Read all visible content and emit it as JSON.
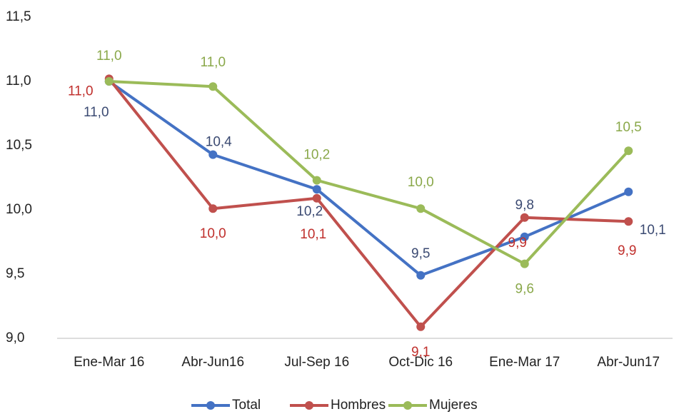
{
  "chart_data": {
    "type": "line",
    "categories": [
      "Ene-Mar 16",
      "Abr-Jun16",
      "Jul-Sep 16",
      "Oct-Dic 16",
      "Ene-Mar 17",
      "Abr-Jun17"
    ],
    "ylim": [
      9,
      11.5
    ],
    "yticks": [
      {
        "value": 9,
        "label": "9,0"
      },
      {
        "value": 9.5,
        "label": "9,5"
      },
      {
        "value": 10,
        "label": "10,0"
      },
      {
        "value": 10.5,
        "label": "10,5"
      },
      {
        "value": 11,
        "label": "11,0"
      },
      {
        "value": 11.5,
        "label": "11,5"
      }
    ],
    "grid": false,
    "legend": "bottom",
    "series": [
      {
        "name": "Total",
        "color": "#4472c4",
        "label_color": "#3b4a72",
        "values": [
          11.0,
          10.43,
          10.16,
          9.49,
          9.79,
          10.14
        ],
        "value_labels": [
          "11,0",
          "10,4",
          "10,2",
          "9,5",
          "9,8",
          "10,1"
        ]
      },
      {
        "name": "Hombres",
        "color": "#c0504d",
        "label_color": "#c0302d",
        "values": [
          11.02,
          10.01,
          10.09,
          9.09,
          9.94,
          9.91
        ],
        "value_labels": [
          "11,0",
          "10,0",
          "10,1",
          "9,1",
          "9,9",
          "9,9"
        ]
      },
      {
        "name": "Mujeres",
        "color": "#9bbb59",
        "label_color": "#8aa84a",
        "values": [
          11.0,
          10.96,
          10.23,
          10.01,
          9.58,
          10.46
        ],
        "value_labels": [
          "11,0",
          "11,0",
          "10,2",
          "10,0",
          "9,6",
          "10,5"
        ]
      }
    ]
  }
}
